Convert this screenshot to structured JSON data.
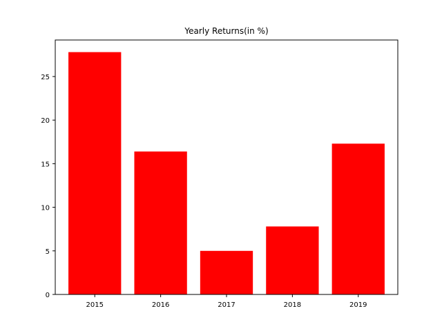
{
  "chart_data": {
    "type": "bar",
    "title": "Yearly Returns(in %)",
    "xlabel": "",
    "ylabel": "",
    "categories": [
      "2015",
      "2016",
      "2017",
      "2018",
      "2019"
    ],
    "values": [
      27.8,
      16.4,
      5.0,
      7.8,
      17.3
    ],
    "ylim": [
      0,
      29.19
    ],
    "yticks": [
      0,
      5,
      10,
      15,
      20,
      25
    ],
    "bar_color": "#ff0000",
    "grid": false,
    "legend": "none"
  }
}
